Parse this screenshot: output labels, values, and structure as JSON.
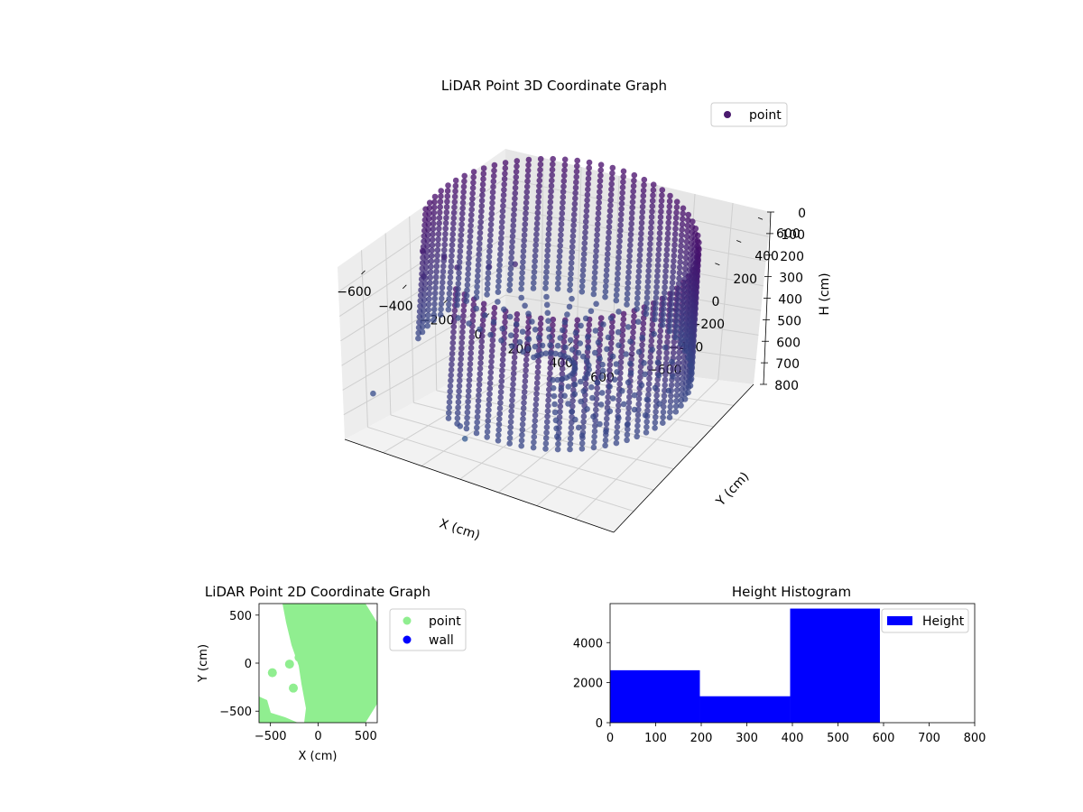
{
  "chart_data": [
    {
      "type": "scatter",
      "projection": "3d",
      "title": "LiDAR Point 3D Coordinate Graph",
      "xlabel": "X (cm)",
      "ylabel": "Y (cm)",
      "zlabel": "H (cm)",
      "xlim": [
        -650,
        650
      ],
      "ylim": [
        -650,
        650
      ],
      "zlim": [
        800,
        0
      ],
      "xticks": [
        "−600",
        "−400",
        "−200",
        "0",
        "200",
        "400",
        "600"
      ],
      "yticks": [
        "−600",
        "−400",
        "−200",
        "0",
        "200",
        "400",
        "600"
      ],
      "zticks": [
        "0",
        "100",
        "200",
        "300",
        "400",
        "500",
        "600",
        "700",
        "800"
      ],
      "grid": true,
      "legend": {
        "position": "top-right",
        "entries": [
          {
            "label": "point",
            "color": "#4a1a6e"
          }
        ]
      },
      "colormap": "viridis",
      "series": [
        {
          "name": "point",
          "shape": "partial cylindrical wall of radius ~600 cm spanning heights 0-600 cm, plus scattered outlier clusters at negative X",
          "wall_radius": 600,
          "wall_height_range": [
            0,
            600
          ],
          "wall_angle_range_deg": [
            -110,
            190
          ],
          "outliers": [
            {
              "x": -450,
              "y": -380,
              "h": 120
            },
            {
              "x": -500,
              "y": -300,
              "h": 60
            },
            {
              "x": -420,
              "y": -250,
              "h": 90
            },
            {
              "x": -380,
              "y": -200,
              "h": 150
            },
            {
              "x": -300,
              "y": -50,
              "h": 200
            },
            {
              "x": -250,
              "y": 100,
              "h": 250
            },
            {
              "x": -600,
              "y": -500,
              "h": 650
            },
            {
              "x": -150,
              "y": -560,
              "h": 620
            },
            {
              "x": -200,
              "y": -400,
              "h": 780
            }
          ]
        }
      ]
    },
    {
      "type": "scatter",
      "title": "LiDAR Point 2D Coordinate Graph",
      "xlabel": "X (cm)",
      "ylabel": "Y (cm)",
      "xlim": [
        -620,
        620
      ],
      "ylim": [
        -620,
        620
      ],
      "xticks": [
        "−500",
        "0",
        "500"
      ],
      "yticks": [
        "500",
        "0",
        "−500"
      ],
      "legend": {
        "position": "outside-right",
        "entries": [
          {
            "label": "point",
            "color": "#90ee90"
          },
          {
            "label": "wall",
            "color": "#0000ff"
          }
        ]
      },
      "series": [
        {
          "name": "point",
          "color": "#90ee90",
          "values": [
            {
              "x": -480,
              "y": -100
            },
            {
              "x": -300,
              "y": -10
            },
            {
              "x": -260,
              "y": -260
            },
            {
              "x": -200,
              "y": 60
            },
            {
              "x": -600,
              "y": -430
            },
            {
              "x": -560,
              "y": -550
            }
          ]
        },
        {
          "name": "wall",
          "color": "#0000ff",
          "values": []
        }
      ]
    },
    {
      "type": "bar",
      "title": "Height Histogram",
      "xlabel": "",
      "ylabel": "",
      "xlim": [
        0,
        800
      ],
      "ylim": [
        0,
        5950
      ],
      "xticks": [
        "0",
        "100",
        "200",
        "300",
        "400",
        "500",
        "600",
        "700",
        "800"
      ],
      "yticks": [
        "0",
        "2000",
        "4000"
      ],
      "legend": {
        "position": "top-right",
        "entries": [
          {
            "label": "Height",
            "color": "#0000ff"
          }
        ]
      },
      "series": [
        {
          "name": "Height",
          "color": "#0000ff",
          "bins": [
            {
              "x0": 0,
              "x1": 197,
              "value": 2620
            },
            {
              "x0": 197,
              "x1": 395,
              "value": 1320
            },
            {
              "x0": 395,
              "x1": 592,
              "value": 5700
            }
          ]
        }
      ]
    }
  ]
}
